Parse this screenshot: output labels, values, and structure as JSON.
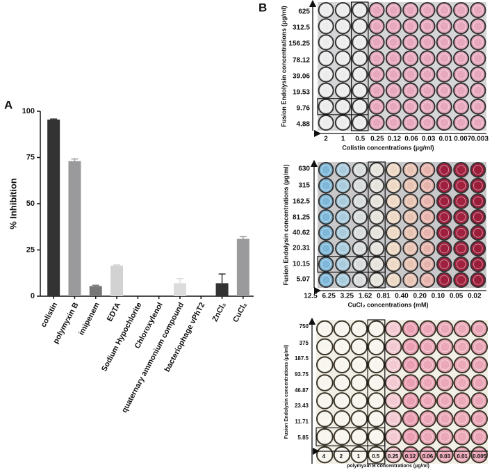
{
  "chart_data": {
    "type": "bar",
    "panel_label": "A",
    "ylabel": "% Inhibition",
    "categories": [
      "colistin",
      "polymyxin B",
      "imipenem",
      "EDTA",
      "Sodium Hypochlorite",
      "Chloroxylenol",
      "quaternary ammonium compound",
      "bacteriophage vPhT2",
      "ZnCl₂",
      "CuCl₂"
    ],
    "values": [
      95.5,
      73,
      5.5,
      16.5,
      0,
      0,
      7,
      0,
      7,
      31
    ],
    "errors": [
      0.3,
      1.2,
      0.4,
      0.4,
      0,
      0,
      2.5,
      0,
      5,
      1.2
    ],
    "colors": [
      "#333333",
      "#9a9a9c",
      "#777777",
      "#d2d2d2",
      "#cccccc",
      "#cccccc",
      "#dcdcdc",
      "#cccccc",
      "#333333",
      "#9a9a9c"
    ],
    "ylim": [
      0,
      100
    ],
    "yticks": [
      0,
      25,
      50,
      75,
      100
    ]
  },
  "panel_b": {
    "panel_label": "B",
    "plates": [
      {
        "y_label": "Fusion Endolysin concentrations (µg/ml)",
        "x_label": "Colistin concentrations (µg/ml)",
        "rows": [
          "625",
          "312.5",
          "156.25",
          "78.12",
          "39.06",
          "19.53",
          "9.76",
          "4.88"
        ],
        "columns": [
          "2",
          "1",
          "0.5",
          "0.25",
          "0.12",
          "0.06",
          "0.03",
          "0.01",
          "0.007",
          "0.003"
        ]
      },
      {
        "y_label": "Fusion Endolysin concentrations (µg/ml)",
        "x_label": "CuCl₂ concentrations (mM)",
        "rows": [
          "630",
          "315",
          "162.5",
          "81.25",
          "40.62",
          "20.31",
          "10.15",
          "5.07"
        ],
        "columns": [
          "12.5",
          "6.25",
          "3.25",
          "1.62",
          "0.81",
          "0.40",
          "0.20",
          "0.10",
          "0.05",
          "0.02"
        ]
      },
      {
        "y_label": "Fusion Endolysin concentrations (µg/ml)",
        "x_label": "polymyxin B concentrations (µg/ml)",
        "rows": [
          "750",
          "375",
          "187.5",
          "93.75",
          "46.87",
          "23.43",
          "11.71",
          "5.85"
        ],
        "columns": [
          "4",
          "2",
          "1",
          "0.5",
          "0.25",
          "0.12",
          "0.06",
          "0.03",
          "0.01",
          "0.005"
        ]
      }
    ]
  }
}
